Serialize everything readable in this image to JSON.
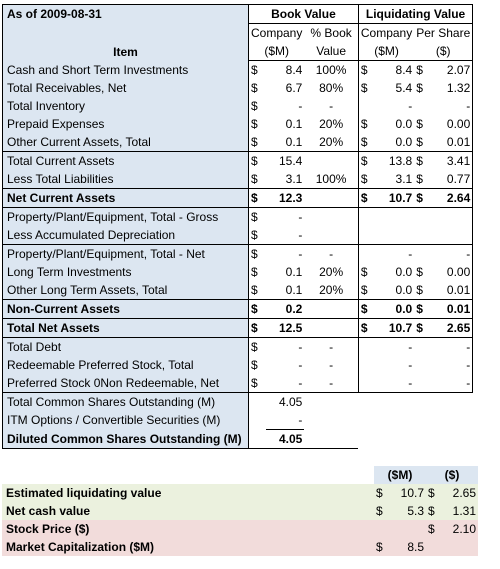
{
  "header": {
    "as_of": "As of 2009-08-31",
    "book_value": "Book Value",
    "liquidating_value": "Liquidating Value",
    "item": "Item",
    "company": "Company",
    "sm": "($M)",
    "pct_book": "% Book",
    "value": "Value",
    "per_share": "Per Share",
    "dollar": "($)"
  },
  "rows": [
    {
      "label": "Cash and Short Term Investments",
      "b_sym": "$",
      "b_val": "8.4",
      "pct": "100%",
      "l_sym": "$",
      "l_val": "8.4",
      "ps_sym": "$",
      "ps": "2.07"
    },
    {
      "label": "Total Receivables, Net",
      "b_sym": "$",
      "b_val": "6.7",
      "pct": "80%",
      "l_sym": "$",
      "l_val": "5.4",
      "ps_sym": "$",
      "ps": "1.32"
    },
    {
      "label": "Total Inventory",
      "b_sym": "$",
      "b_val": "-",
      "pct": "-",
      "l_sym": "",
      "l_val": "-",
      "ps_sym": "",
      "ps": "-"
    },
    {
      "label": "Prepaid Expenses",
      "b_sym": "$",
      "b_val": "0.1",
      "pct": "20%",
      "l_sym": "$",
      "l_val": "0.0",
      "ps_sym": "$",
      "ps": "0.00"
    },
    {
      "label": "Other Current Assets, Total",
      "b_sym": "$",
      "b_val": "0.1",
      "pct": "20%",
      "l_sym": "$",
      "l_val": "0.0",
      "ps_sym": "$",
      "ps": "0.01"
    },
    {
      "label": "Total Current Assets",
      "b_sym": "$",
      "b_val": "15.4",
      "pct": "",
      "l_sym": "$",
      "l_val": "13.8",
      "ps_sym": "$",
      "ps": "3.41"
    },
    {
      "label": "Less Total Liabilities",
      "b_sym": "$",
      "b_val": "3.1",
      "pct": "100%",
      "l_sym": "$",
      "l_val": "3.1",
      "ps_sym": "$",
      "ps": "0.77"
    },
    {
      "label": "Net Current Assets",
      "b_sym": "$",
      "b_val": "12.3",
      "pct": "",
      "l_sym": "$",
      "l_val": "10.7",
      "ps_sym": "$",
      "ps": "2.64"
    },
    {
      "label": "Property/Plant/Equipment, Total - Gross",
      "b_sym": "$",
      "b_val": "-",
      "pct": "",
      "l_sym": "",
      "l_val": "",
      "ps_sym": "",
      "ps": ""
    },
    {
      "label": "Less Accumulated Depreciation",
      "b_sym": "$",
      "b_val": "-",
      "pct": "",
      "l_sym": "",
      "l_val": "",
      "ps_sym": "",
      "ps": ""
    },
    {
      "label": "Property/Plant/Equipment, Total - Net",
      "b_sym": "$",
      "b_val": "-",
      "pct": "-",
      "l_sym": "",
      "l_val": "-",
      "ps_sym": "",
      "ps": "-"
    },
    {
      "label": "Long Term Investments",
      "b_sym": "$",
      "b_val": "0.1",
      "pct": "20%",
      "l_sym": "$",
      "l_val": "0.0",
      "ps_sym": "$",
      "ps": "0.00"
    },
    {
      "label": "Other Long Term Assets, Total",
      "b_sym": "$",
      "b_val": "0.1",
      "pct": "20%",
      "l_sym": "$",
      "l_val": "0.0",
      "ps_sym": "$",
      "ps": "0.01"
    },
    {
      "label": "Non-Current Assets",
      "b_sym": "$",
      "b_val": "0.2",
      "pct": "",
      "l_sym": "$",
      "l_val": "0.0",
      "ps_sym": "$",
      "ps": "0.01"
    },
    {
      "label": "Total Net Assets",
      "b_sym": "$",
      "b_val": "12.5",
      "pct": "",
      "l_sym": "$",
      "l_val": "10.7",
      "ps_sym": "$",
      "ps": "2.65"
    },
    {
      "label": "Total Debt",
      "b_sym": "$",
      "b_val": "-",
      "pct": "-",
      "l_sym": "",
      "l_val": "-",
      "ps_sym": "",
      "ps": "-"
    },
    {
      "label": "Redeemable Preferred Stock, Total",
      "b_sym": "$",
      "b_val": "-",
      "pct": "-",
      "l_sym": "",
      "l_val": "-",
      "ps_sym": "",
      "ps": "-"
    },
    {
      "label": "Preferred Stock 0Non Redeemable, Net",
      "b_sym": "$",
      "b_val": "-",
      "pct": "-",
      "l_sym": "",
      "l_val": "-",
      "ps_sym": "",
      "ps": "-"
    },
    {
      "label": "Total Common Shares Outstanding (M)",
      "b_sym": "",
      "b_val": "4.05",
      "pct": "",
      "l_sym": "",
      "l_val": "",
      "ps_sym": "",
      "ps": ""
    },
    {
      "label": "ITM Options / Convertible Securities (M)",
      "b_sym": "",
      "b_val": "-",
      "pct": "",
      "l_sym": "",
      "l_val": "",
      "ps_sym": "",
      "ps": ""
    },
    {
      "label": "Diluted Common Shares Outstanding (M)",
      "b_sym": "",
      "b_val": "4.05",
      "pct": "",
      "l_sym": "",
      "l_val": "",
      "ps_sym": "",
      "ps": ""
    }
  ],
  "summary": {
    "col_sm": "($M)",
    "col_d": "($)",
    "rows": [
      {
        "label": "Estimated liquidating value",
        "sm_sym": "$",
        "sm": "10.7",
        "d_sym": "$",
        "d": "2.65"
      },
      {
        "label": "Net cash value",
        "sm_sym": "$",
        "sm": "5.3",
        "d_sym": "$",
        "d": "1.31"
      },
      {
        "label": "Stock Price ($)",
        "sm_sym": "",
        "sm": "",
        "d_sym": "$",
        "d": "2.10"
      },
      {
        "label": "Market Capitalization ($M)",
        "sm_sym": "$",
        "sm": "8.5",
        "d_sym": "",
        "d": ""
      }
    ]
  },
  "colors": {
    "label_bg": "#dce6f1",
    "green_bg": "#ebf1de",
    "pink_bg": "#f2dcdb"
  }
}
